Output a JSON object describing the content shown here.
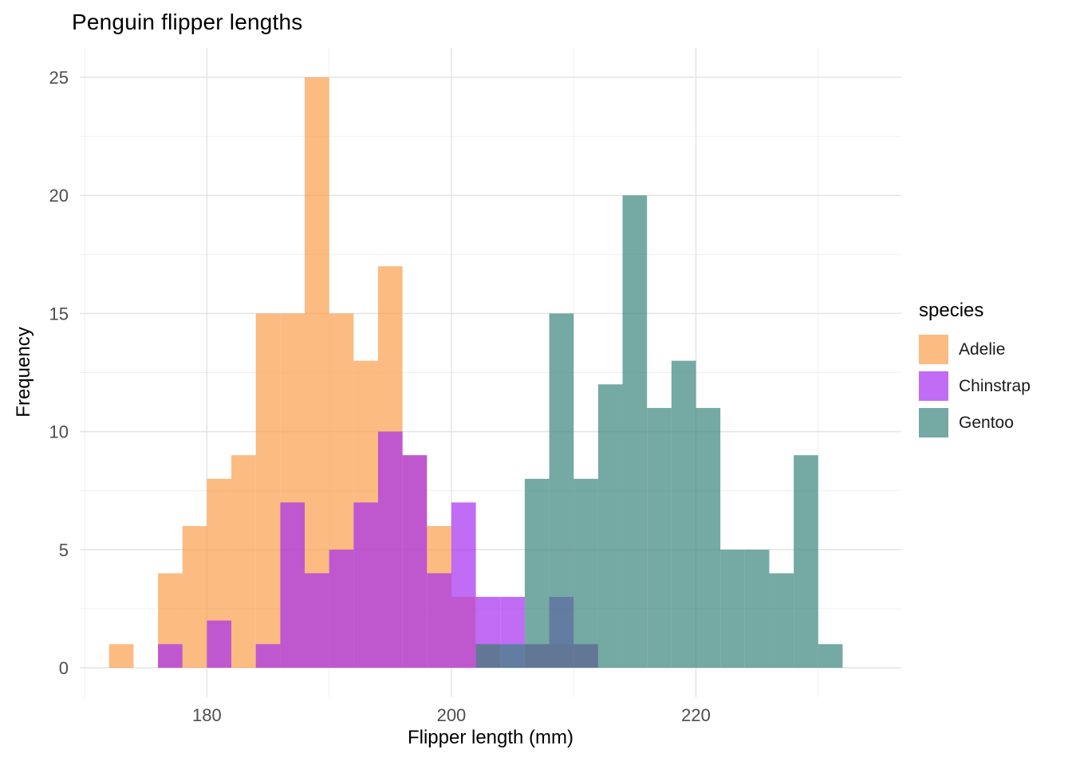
{
  "chart_data": {
    "type": "bar",
    "subtype": "overlaid-histogram",
    "title": "Penguin flipper lengths",
    "xlabel": "Flipper length (mm)",
    "ylabel": "Frequency",
    "legend_title": "species",
    "legend_position": "right",
    "grid": true,
    "bin_start": 172,
    "bin_width": 2,
    "xlim": [
      169.6,
      236.8
    ],
    "ylim": [
      -1.25,
      26.25
    ],
    "x_ticks": [
      180,
      200,
      220
    ],
    "x_minor_ticks": [
      170,
      190,
      210,
      230
    ],
    "y_ticks": [
      0,
      5,
      10,
      15,
      20,
      25
    ],
    "y_minor_ticks": [
      2.5,
      7.5,
      12.5,
      17.5,
      22.5
    ],
    "fill_opacity": 0.7,
    "grid_major_color": "#e4e4e4",
    "grid_minor_color": "#f0f0f0",
    "tick_label_color": "#4d4d4d",
    "series": [
      {
        "name": "Adelie",
        "color": "#FA9E4B",
        "counts": [
          1,
          0,
          4,
          6,
          8,
          9,
          15,
          15,
          25,
          15,
          13,
          17,
          9,
          6,
          3,
          1,
          0,
          1,
          1,
          1,
          0,
          0,
          0,
          0,
          0,
          0,
          0,
          0,
          0,
          0,
          0
        ]
      },
      {
        "name": "Chinstrap",
        "color": "#A52EF1",
        "counts": [
          0,
          0,
          1,
          0,
          2,
          0,
          1,
          7,
          4,
          5,
          7,
          10,
          9,
          4,
          7,
          3,
          3,
          1,
          3,
          1,
          0,
          0,
          0,
          0,
          0,
          0,
          0,
          0,
          0,
          0,
          0
        ]
      },
      {
        "name": "Gentoo",
        "color": "#3B847D",
        "counts": [
          0,
          0,
          0,
          0,
          0,
          0,
          0,
          0,
          0,
          0,
          0,
          0,
          0,
          0,
          0,
          1,
          1,
          8,
          15,
          8,
          12,
          20,
          11,
          13,
          11,
          5,
          5,
          4,
          9,
          1,
          0
        ]
      }
    ]
  }
}
